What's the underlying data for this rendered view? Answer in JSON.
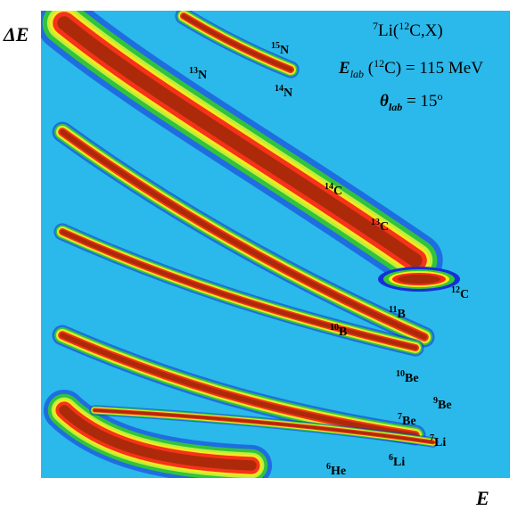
{
  "axes": {
    "xlabel": "E",
    "ylabel": "ΔE"
  },
  "annotation": {
    "reaction": {
      "pre": "7",
      "a": "Li(",
      "pre2": "12",
      "b": "C,X)"
    },
    "energy": {
      "E": "E",
      "sub": "lab",
      "mid": " (",
      "sup": "12",
      "rest": "C) = 115 MeV"
    },
    "angle": {
      "theta": "θ",
      "sub": "lab",
      "eq": " = 15",
      "sup": "o"
    }
  },
  "colors": {
    "background": "#2ab9ea",
    "low": "#1530d8",
    "mid_low": "#34c834",
    "mid": "#c8f03a",
    "mid_high": "#f5e91a",
    "high": "#f5281a",
    "peak": "#a82a08"
  },
  "chart_data": {
    "type": "scatter",
    "description_kind": "particle-identification ΔE–E density map",
    "series": [
      {
        "element": "N",
        "bands": [
          {
            "label": "15N",
            "mass": "15"
          },
          {
            "label": "13N",
            "mass": "13"
          },
          {
            "label": "14N",
            "mass": "14"
          }
        ]
      },
      {
        "element": "C",
        "bands": [
          {
            "label": "14C",
            "mass": "14"
          },
          {
            "label": "13C",
            "mass": "13"
          },
          {
            "label": "12C",
            "mass": "12"
          }
        ]
      },
      {
        "element": "B",
        "bands": [
          {
            "label": "11B",
            "mass": "11"
          },
          {
            "label": "10B",
            "mass": "10"
          }
        ]
      },
      {
        "element": "Be",
        "bands": [
          {
            "label": "10Be",
            "mass": "10"
          },
          {
            "label": "9Be",
            "mass": "9"
          },
          {
            "label": "7Be",
            "mass": "7"
          }
        ]
      },
      {
        "element": "Li",
        "bands": [
          {
            "label": "7Li",
            "mass": "7"
          },
          {
            "label": "6Li",
            "mass": "6"
          }
        ]
      },
      {
        "element": "He",
        "bands": [
          {
            "label": "6He",
            "mass": "6"
          }
        ]
      }
    ],
    "labels": [
      {
        "mass": "15",
        "sym": "N"
      },
      {
        "mass": "13",
        "sym": "N"
      },
      {
        "mass": "14",
        "sym": "N"
      },
      {
        "mass": "14",
        "sym": "C"
      },
      {
        "mass": "13",
        "sym": "C"
      },
      {
        "mass": "12",
        "sym": "C"
      },
      {
        "mass": "11",
        "sym": "B"
      },
      {
        "mass": "10",
        "sym": "B"
      },
      {
        "mass": "10",
        "sym": "Be"
      },
      {
        "mass": "9",
        "sym": "Be"
      },
      {
        "mass": "7",
        "sym": "Be"
      },
      {
        "mass": "7",
        "sym": "Li"
      },
      {
        "mass": "6",
        "sym": "Li"
      },
      {
        "mass": "6",
        "sym": "He"
      }
    ]
  }
}
